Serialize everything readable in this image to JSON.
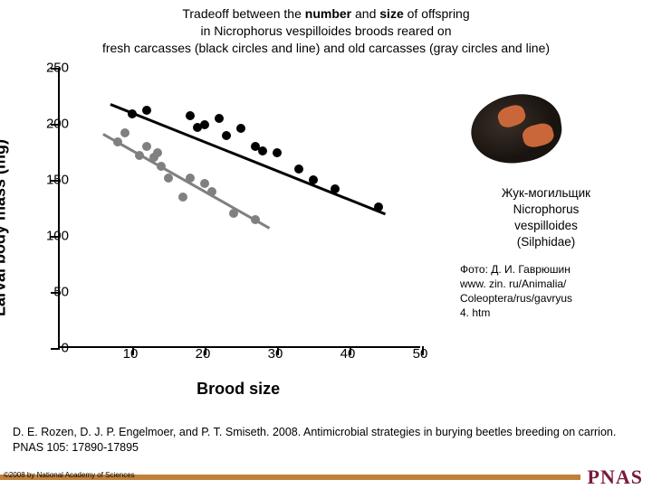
{
  "title": {
    "line1_pre": "Tradeoff between the ",
    "line1_bold1": "number",
    "line1_mid": " and ",
    "line1_bold2": "size",
    "line1_post": " of offspring",
    "line2": "in Nicrophorus vespilloides broods reared on",
    "line3": "fresh carcasses (black circles and line) and old carcasses (gray circles and line)"
  },
  "chart": {
    "type": "scatter",
    "xlabel": "Brood size",
    "ylabel": "Larval body mass (mg)",
    "xlim": [
      0,
      50
    ],
    "ylim": [
      0,
      250
    ],
    "xticks": [
      10,
      20,
      30,
      40,
      50
    ],
    "yticks": [
      0,
      50,
      100,
      150,
      200,
      250
    ],
    "tick_fontsize": 15,
    "label_fontsize": 18,
    "background_color": "#ffffff",
    "axis_color": "#000000",
    "series": [
      {
        "name": "fresh",
        "color": "#000000",
        "marker": "circle",
        "marker_size": 10,
        "line_width": 2.5,
        "points": [
          [
            10,
            207
          ],
          [
            12,
            210
          ],
          [
            18,
            205
          ],
          [
            19,
            195
          ],
          [
            20,
            197
          ],
          [
            22,
            203
          ],
          [
            23,
            188
          ],
          [
            25,
            194
          ],
          [
            27,
            178
          ],
          [
            28,
            174
          ],
          [
            30,
            172
          ],
          [
            33,
            158
          ],
          [
            35,
            148
          ],
          [
            38,
            140
          ],
          [
            44,
            124
          ]
        ],
        "regression": {
          "x1": 7,
          "y1": 218,
          "x2": 45,
          "y2": 120
        }
      },
      {
        "name": "old",
        "color": "#808080",
        "marker": "circle",
        "marker_size": 10,
        "line_width": 2.5,
        "points": [
          [
            8,
            182
          ],
          [
            9,
            190
          ],
          [
            11,
            170
          ],
          [
            12,
            178
          ],
          [
            13,
            168
          ],
          [
            13.5,
            172
          ],
          [
            14,
            160
          ],
          [
            15,
            150
          ],
          [
            17,
            133
          ],
          [
            18,
            150
          ],
          [
            20,
            145
          ],
          [
            21,
            138
          ],
          [
            24,
            118
          ],
          [
            27,
            113
          ]
        ],
        "regression": {
          "x1": 6,
          "y1": 192,
          "x2": 29,
          "y2": 108
        }
      }
    ]
  },
  "caption": {
    "l1": "Жук-могильщик",
    "l2": "Nicrophorus",
    "l3": "vespilloides",
    "l4": "(Silphidae)"
  },
  "photo_credit": {
    "l1": "Фото: Д. И. Гаврюшин",
    "l2": "www. zin. ru/Animalia/",
    "l3": "Coleoptera/rus/gavryus",
    "l4": "4. htm"
  },
  "citation": "D. E. Rozen, D. J. P. Engelmoer, and P. T. Smiseth. 2008. Antimicrobial strategies in burying beetles breeding on carrion. PNAS 105: 17890-17895",
  "copyright": "©2008 by National Academy of Sciences",
  "journal": "PNAS",
  "colors": {
    "footer_bar": "#c0803a",
    "pnas": "#7a1a3a",
    "beetle_dark": "#1a1410",
    "beetle_orange": "#c9673a"
  }
}
